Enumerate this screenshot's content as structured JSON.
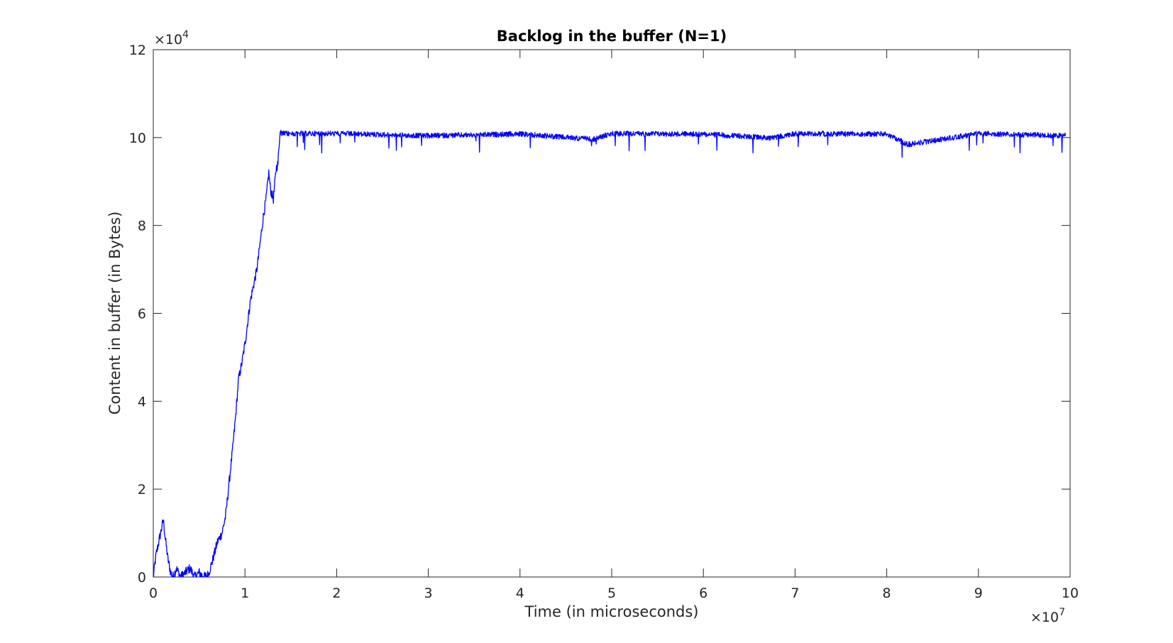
{
  "chart_data": {
    "type": "line",
    "title": "Backlog in the buffer (N=1)",
    "xlabel": "Time (in microseconds)",
    "ylabel": "Content in buffer (in Bytes)",
    "x_exponent_base": "×10",
    "x_exponent_power": "7",
    "y_exponent_base": "×10",
    "y_exponent_power": "4",
    "xlim": [
      0,
      100000000
    ],
    "ylim": [
      0,
      120000
    ],
    "x_scale_factor": 10000000,
    "y_scale_factor": 10000,
    "x_ticks": [
      0,
      1,
      2,
      3,
      4,
      5,
      6,
      7,
      8,
      9,
      10
    ],
    "y_ticks": [
      0,
      2,
      4,
      6,
      8,
      10,
      12
    ],
    "x_tick_labels": [
      "0",
      "1",
      "2",
      "3",
      "4",
      "5",
      "6",
      "7",
      "8",
      "9",
      "10"
    ],
    "y_tick_labels": [
      "0",
      "2",
      "4",
      "6",
      "8",
      "10",
      "12"
    ],
    "grid": false,
    "line_color": "#0000ff",
    "series": [
      {
        "x": [
          0,
          300000,
          600000,
          900000,
          1100000,
          1300000,
          1600000,
          1900000,
          2200000,
          2500000,
          3000000,
          3500000,
          4000000,
          4500000,
          5000000,
          5500000,
          6000000,
          6500000,
          7000000,
          7500000,
          7900000,
          8300000,
          8700000,
          9000000,
          9300000,
          9600000,
          10000000,
          10300000,
          10600000,
          11000000,
          11300000,
          11600000,
          12000000,
          12300000,
          12600000,
          12800000,
          13100000,
          13400000,
          13600000,
          13800000,
          14000000,
          20000000,
          30000000,
          40000000,
          48000000,
          50000000,
          60000000,
          67500000,
          70000000,
          80000000,
          82300000,
          90000000,
          99500000
        ],
        "y": [
          0,
          5000,
          8000,
          11000,
          13000,
          9000,
          4000,
          1000,
          0,
          2000,
          0,
          1000,
          2000,
          0,
          1000,
          0,
          500,
          4000,
          8000,
          10000,
          14000,
          22000,
          30000,
          37000,
          45000,
          48000,
          53000,
          58000,
          63000,
          67000,
          70000,
          75000,
          82000,
          86000,
          92000,
          88000,
          86000,
          93000,
          94000,
          101000,
          101500,
          101500,
          101000,
          101400,
          100200,
          101500,
          101400,
          100500,
          101500,
          101400,
          99000,
          101500,
          101000
        ]
      }
    ]
  }
}
